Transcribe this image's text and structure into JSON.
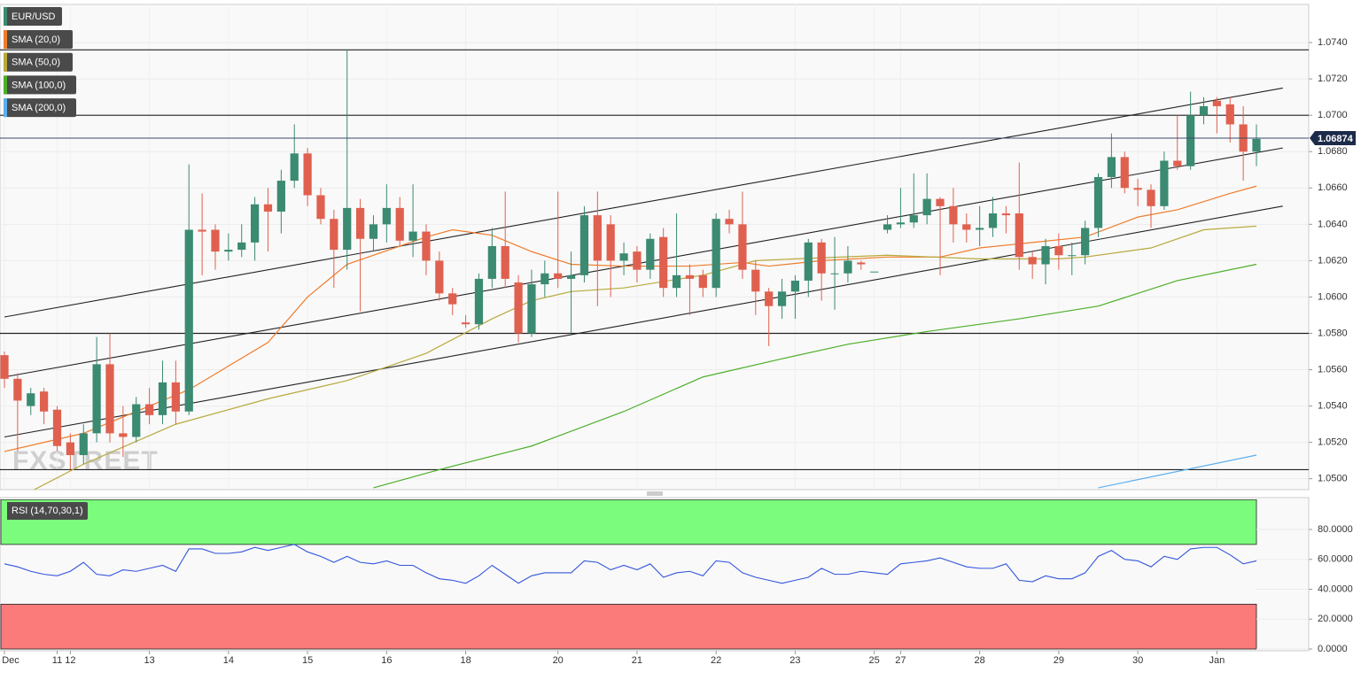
{
  "chart_data": [
    {
      "type": "candlestick",
      "title": "EUR/USD",
      "watermark": "FXSTREET",
      "categories": [
        "Dec",
        null,
        null,
        null,
        "11",
        "12",
        null,
        null,
        null,
        null,
        null,
        "13",
        null,
        null,
        null,
        null,
        null,
        "14",
        null,
        null,
        null,
        null,
        null,
        "15",
        null,
        null,
        null,
        null,
        null,
        "16",
        null,
        null,
        null,
        null,
        null,
        "18",
        null,
        null,
        null,
        null,
        null,
        null,
        "20",
        null,
        null,
        null,
        null,
        null,
        "21",
        null,
        null,
        null,
        null,
        null,
        "22",
        null,
        null,
        null,
        null,
        null,
        "23",
        null,
        null,
        null,
        null,
        null,
        "25",
        null,
        "27",
        null,
        null,
        null,
        null,
        null,
        "28",
        null,
        null,
        null,
        null,
        null,
        "29",
        null,
        null,
        null,
        null,
        null,
        "30",
        null,
        null,
        null,
        null,
        null,
        "Jan",
        null,
        null,
        null
      ],
      "open": [
        1.0568,
        1.0555,
        1.054,
        1.0548,
        1.0538,
        1.052,
        1.0513,
        1.0525,
        1.0563,
        1.0525,
        1.0523,
        1.0541,
        1.0535,
        1.0553,
        1.0537,
        1.0637,
        1.0637,
        1.0625,
        1.0626,
        1.063,
        1.0651,
        1.0647,
        1.0664,
        1.0679,
        1.0656,
        1.0643,
        1.0626,
        1.0649,
        1.0632,
        1.064,
        1.0649,
        1.0631,
        1.0636,
        1.062,
        1.0602,
        1.0586,
        1.0585,
        1.061,
        1.0628,
        1.0608,
        1.058,
        1.0607,
        1.0613,
        1.061,
        1.0612,
        1.0645,
        1.064,
        1.062,
        1.0625,
        1.0615,
        1.0633,
        1.0605,
        1.0612,
        1.0612,
        1.0605,
        1.0643,
        1.064,
        1.0615,
        1.0603,
        1.0595,
        1.0603,
        1.0609,
        1.063,
        1.0613,
        1.0613,
        1.0619,
        1.0614,
        1.0637,
        1.064,
        1.0641,
        1.0645,
        1.0654,
        1.065,
        1.064,
        1.0637,
        1.0638,
        1.0646,
        1.0646,
        1.0622,
        1.0618,
        1.0628,
        1.0623,
        1.0623,
        1.0638,
        1.0666,
        1.0677,
        1.066,
        1.0659,
        1.065,
        1.0675,
        1.0672,
        1.07,
        1.0708,
        1.0706,
        1.0695,
        1.068
      ],
      "high": [
        1.057,
        1.0558,
        1.055,
        1.055,
        1.054,
        1.0525,
        1.053,
        1.0578,
        1.058,
        1.054,
        1.0545,
        1.055,
        1.0565,
        1.0565,
        1.0673,
        1.0657,
        1.064,
        1.0635,
        1.064,
        1.0655,
        1.066,
        1.067,
        1.0695,
        1.0682,
        1.066,
        1.0648,
        1.0736,
        1.0654,
        1.0645,
        1.0662,
        1.0655,
        1.0662,
        1.064,
        1.0625,
        1.0605,
        1.059,
        1.0613,
        1.0638,
        1.0658,
        1.0612,
        1.0615,
        1.062,
        1.0658,
        1.0625,
        1.065,
        1.0658,
        1.0645,
        1.063,
        1.0628,
        1.0635,
        1.0638,
        1.0646,
        1.0618,
        1.0615,
        1.0646,
        1.0648,
        1.0658,
        1.062,
        1.0605,
        1.061,
        1.0612,
        1.0632,
        1.0632,
        1.0633,
        1.0628,
        1.062,
        1.0614,
        1.0645,
        1.066,
        1.0668,
        1.0668,
        1.0655,
        1.066,
        1.0646,
        1.065,
        1.0655,
        1.065,
        1.0674,
        1.0625,
        1.0632,
        1.0635,
        1.063,
        1.0642,
        1.0668,
        1.069,
        1.068,
        1.0665,
        1.0662,
        1.068,
        1.07,
        1.0713,
        1.071,
        1.071,
        1.071,
        1.0705,
        1.0695
      ],
      "low": [
        1.055,
        1.0515,
        1.0535,
        1.053,
        1.0515,
        1.0505,
        1.0508,
        1.052,
        1.052,
        1.0512,
        1.052,
        1.053,
        1.053,
        1.053,
        1.0535,
        1.0612,
        1.0615,
        1.062,
        1.0622,
        1.062,
        1.0625,
        1.0635,
        1.066,
        1.065,
        1.064,
        1.0605,
        1.0615,
        1.0592,
        1.0625,
        1.063,
        1.0628,
        1.0622,
        1.0612,
        1.0598,
        1.059,
        1.0583,
        1.0582,
        1.0605,
        1.0605,
        1.0575,
        1.0578,
        1.06,
        1.0605,
        1.058,
        1.0608,
        1.0595,
        1.06,
        1.0612,
        1.0608,
        1.061,
        1.06,
        1.06,
        1.059,
        1.06,
        1.06,
        1.0635,
        1.061,
        1.059,
        1.0573,
        1.0588,
        1.0588,
        1.06,
        1.0598,
        1.0593,
        1.0608,
        1.0615,
        1.0614,
        1.0635,
        1.0638,
        1.0638,
        1.064,
        1.0612,
        1.063,
        1.063,
        1.0628,
        1.0633,
        1.0635,
        1.0615,
        1.061,
        1.0607,
        1.0615,
        1.0612,
        1.0618,
        1.0633,
        1.066,
        1.0657,
        1.065,
        1.0638,
        1.0648,
        1.067,
        1.067,
        1.0695,
        1.069,
        1.0685,
        1.0664,
        1.0672
      ],
      "close": [
        1.0555,
        1.0543,
        1.0547,
        1.0537,
        1.0518,
        1.0513,
        1.0525,
        1.0563,
        1.0525,
        1.0523,
        1.0541,
        1.0535,
        1.0553,
        1.0537,
        1.0637,
        1.0636,
        1.0625,
        1.0626,
        1.063,
        1.0651,
        1.0647,
        1.0664,
        1.0679,
        1.0656,
        1.0643,
        1.0626,
        1.0649,
        1.0632,
        1.064,
        1.0649,
        1.0631,
        1.0636,
        1.062,
        1.0602,
        1.0596,
        1.0585,
        1.061,
        1.0628,
        1.061,
        1.058,
        1.0607,
        1.0613,
        1.061,
        1.0612,
        1.0645,
        1.062,
        1.062,
        1.0624,
        1.0615,
        1.0632,
        1.0605,
        1.0612,
        1.061,
        1.0605,
        1.0643,
        1.064,
        1.0615,
        1.0603,
        1.0595,
        1.0603,
        1.0609,
        1.063,
        1.0613,
        1.0613,
        1.062,
        1.0618,
        1.0614,
        1.064,
        1.0641,
        1.0645,
        1.0654,
        1.065,
        1.064,
        1.0637,
        1.0638,
        1.0646,
        1.0645,
        1.0622,
        1.0618,
        1.0628,
        1.0623,
        1.0623,
        1.0638,
        1.0666,
        1.0677,
        1.066,
        1.0659,
        1.065,
        1.0675,
        1.0672,
        1.07,
        1.0705,
        1.0705,
        1.0695,
        1.068,
        1.0687
      ],
      "up_color": "#3b8a72",
      "down_color": "#e0604f",
      "series": [
        {
          "name": "SMA (20,0)",
          "color": "#f07c2a",
          "x": [
            0,
            6,
            14,
            20,
            23,
            26,
            32,
            34,
            37,
            40,
            43,
            47,
            52,
            56,
            58,
            62,
            67,
            71,
            74,
            78,
            82,
            86,
            89,
            93,
            95
          ],
          "values": [
            1.0515,
            1.0525,
            1.0549,
            1.0575,
            1.06,
            1.0618,
            1.0633,
            1.0637,
            1.0634,
            1.0625,
            1.0618,
            1.0617,
            1.0617,
            1.0619,
            1.0617,
            1.062,
            1.0622,
            1.0622,
            1.0627,
            1.063,
            1.0633,
            1.0644,
            1.0648,
            1.0657,
            1.0661
          ]
        },
        {
          "name": "SMA (50,0)",
          "color": "#b8a93c",
          "x": [
            2,
            6,
            13,
            20,
            26,
            32,
            37,
            40,
            43,
            47,
            53,
            57,
            60,
            67,
            74,
            80,
            82,
            87,
            91,
            95
          ],
          "values": [
            1.0493,
            1.0508,
            1.053,
            1.0544,
            1.0554,
            1.0569,
            1.0588,
            1.0598,
            1.0603,
            1.0605,
            1.0612,
            1.062,
            1.0621,
            1.0623,
            1.0621,
            1.0621,
            1.0622,
            1.0627,
            1.0637,
            1.0639
          ]
        },
        {
          "name": "SMA (100,0)",
          "color": "#4caf2a",
          "x": [
            28,
            33,
            40,
            47,
            53,
            59,
            64,
            70,
            77,
            83,
            89,
            95
          ],
          "values": [
            1.0495,
            1.0505,
            1.0518,
            1.0537,
            1.0556,
            1.0566,
            1.0574,
            1.0581,
            1.0588,
            1.0595,
            1.0609,
            1.0618
          ]
        },
        {
          "name": "SMA (200,0)",
          "color": "#5aaeef",
          "x": [
            83,
            95
          ],
          "values": [
            1.0495,
            1.0513
          ]
        }
      ],
      "hlines": [
        1.0736,
        1.07,
        1.058,
        1.0505
      ],
      "trendlines": [
        {
          "x": [
            0,
            97
          ],
          "values": [
            1.0589,
            1.0715
          ]
        },
        {
          "x": [
            0,
            97
          ],
          "values": [
            1.0556,
            1.0682
          ]
        },
        {
          "x": [
            0,
            97
          ],
          "values": [
            1.0523,
            1.065
          ]
        }
      ],
      "last_price": 1.06874,
      "ylim": [
        1.0494,
        1.0761
      ],
      "yticks": [
        {
          "value": 1.05,
          "label": "1.0500"
        },
        {
          "value": 1.052,
          "label": "1.0520"
        },
        {
          "value": 1.054,
          "label": "1.0540"
        },
        {
          "value": 1.056,
          "label": "1.0560"
        },
        {
          "value": 1.058,
          "label": "1.0580"
        },
        {
          "value": 1.06,
          "label": "1.0600"
        },
        {
          "value": 1.062,
          "label": "1.0620"
        },
        {
          "value": 1.064,
          "label": "1.0640"
        },
        {
          "value": 1.066,
          "label": "1.0660"
        },
        {
          "value": 1.068,
          "label": "1.0680"
        },
        {
          "value": 1.07,
          "label": "1.0700"
        },
        {
          "value": 1.072,
          "label": "1.0720"
        },
        {
          "value": 1.074,
          "label": "1.0740"
        }
      ],
      "grid": true
    },
    {
      "type": "line",
      "title": "RSI (14,70,30,1)",
      "color": "#3355dd",
      "values": [
        57,
        55,
        52,
        50,
        49,
        52,
        58,
        50,
        49,
        53,
        52,
        54,
        56,
        52,
        67,
        67,
        64,
        64,
        65,
        68,
        66,
        68,
        70,
        65,
        62,
        58,
        62,
        58,
        57,
        59,
        56,
        56,
        51,
        47,
        46,
        44,
        49,
        56,
        50,
        44,
        49,
        51,
        51,
        51,
        59,
        58,
        53,
        56,
        53,
        57,
        48,
        51,
        52,
        49,
        59,
        58,
        51,
        48,
        46,
        44,
        46,
        48,
        54,
        50,
        50,
        52,
        51,
        50,
        57,
        58,
        59,
        61,
        58,
        55,
        54,
        54,
        57,
        46,
        45,
        49,
        47,
        47,
        51,
        62,
        66,
        60,
        59,
        55,
        62,
        60,
        67,
        68,
        68,
        63,
        57,
        59
      ],
      "bands": [
        {
          "from": 70,
          "to": 100,
          "color": "#7cfc7c"
        },
        {
          "from": 0,
          "to": 30,
          "color": "#fb7a7a"
        }
      ],
      "ylim": [
        0,
        100
      ],
      "yticks": [
        {
          "value": 0,
          "label": "0.0000"
        },
        {
          "value": 20,
          "label": "20.0000"
        },
        {
          "value": 40,
          "label": "40.0000"
        },
        {
          "value": 60,
          "label": "60.0000"
        },
        {
          "value": 80,
          "label": "80.0000"
        }
      ],
      "grid": true
    }
  ]
}
